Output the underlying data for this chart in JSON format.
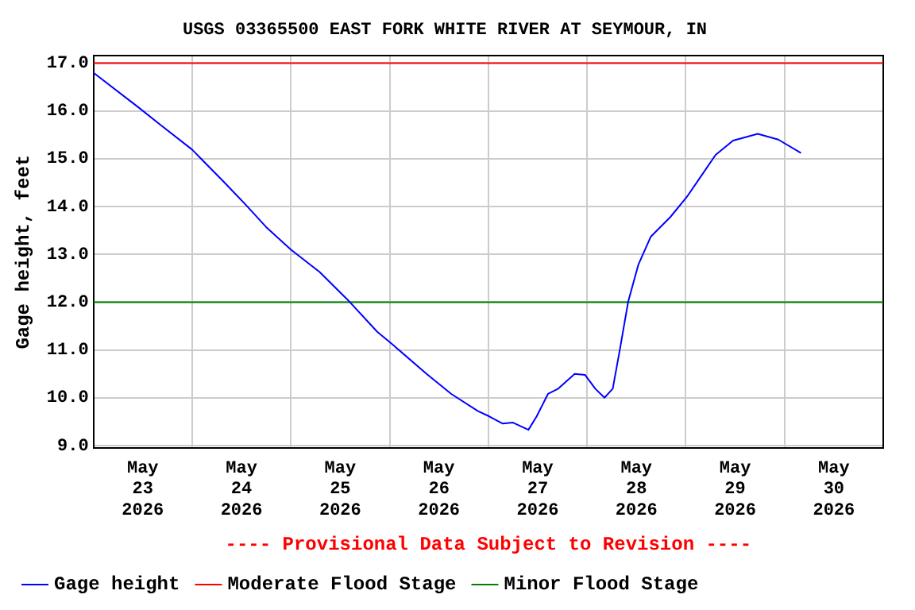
{
  "chart_data": {
    "type": "line",
    "title": "USGS 03365500 EAST FORK WHITE RIVER AT SEYMOUR, IN",
    "ylabel": "Gage height, feet",
    "annotations": [
      "---- Provisional Data Subject to Revision ----"
    ],
    "x": [
      "2026-05-23T00:00",
      "2026-05-23T11:00",
      "2026-05-23T16:15",
      "2026-05-24T00:00",
      "2026-05-24T07:45",
      "2026-05-24T13:00",
      "2026-05-24T18:00",
      "2026-05-25T00:00",
      "2026-05-25T07:00",
      "2026-05-25T14:15",
      "2026-05-25T21:00",
      "2026-05-26T00:30",
      "2026-05-26T09:00",
      "2026-05-26T15:00",
      "2026-05-26T21:30",
      "2026-05-27T00:15",
      "2026-05-27T03:30",
      "2026-05-27T06:00",
      "2026-05-27T09:45",
      "2026-05-27T11:45",
      "2026-05-27T14:30",
      "2026-05-27T17:00",
      "2026-05-27T21:00",
      "2026-05-27T23:30",
      "2026-05-28T02:00",
      "2026-05-28T04:15",
      "2026-05-28T06:15",
      "2026-05-28T08:00",
      "2026-05-28T10:00",
      "2026-05-28T12:30",
      "2026-05-28T15:30",
      "2026-05-28T20:15",
      "2026-05-29T00:15",
      "2026-05-29T04:00",
      "2026-05-29T07:15",
      "2026-05-29T11:30",
      "2026-05-29T17:30",
      "2026-05-29T22:30",
      "2026-05-30T04:00"
    ],
    "series": [
      {
        "name": "Gage height",
        "color": "#0000ff",
        "values": [
          16.8,
          16.07,
          15.71,
          15.19,
          14.51,
          14.04,
          13.57,
          13.1,
          12.63,
          12.01,
          11.38,
          11.13,
          10.5,
          10.08,
          9.72,
          9.61,
          9.46,
          9.48,
          9.33,
          9.61,
          10.08,
          10.19,
          10.5,
          10.48,
          10.19,
          10.0,
          10.19,
          11.02,
          12.01,
          12.79,
          13.37,
          13.78,
          14.2,
          14.67,
          15.08,
          15.38,
          15.52,
          15.4,
          15.12
        ]
      }
    ],
    "ref_lines": [
      {
        "axis": "y",
        "value": 17,
        "label": "Moderate Flood Stage",
        "color": "#ff0000"
      },
      {
        "axis": "y",
        "value": 12,
        "label": "Minor Flood Stage",
        "color": "#008000"
      }
    ],
    "xlim": [
      "2026-05-23T00:00",
      "2026-05-31T00:00"
    ],
    "xticks": [
      {
        "value": "2026-05-23T00:00",
        "label": null
      },
      {
        "value": "2026-05-23T12:00",
        "label": "May 23 2026"
      },
      {
        "value": "2026-05-24T00:00",
        "label": null
      },
      {
        "value": "2026-05-24T12:00",
        "label": "May 24 2026"
      },
      {
        "value": "2026-05-25T00:00",
        "label": null
      },
      {
        "value": "2026-05-25T12:00",
        "label": "May 25 2026"
      },
      {
        "value": "2026-05-26T00:00",
        "label": null
      },
      {
        "value": "2026-05-26T12:00",
        "label": "May 26 2026"
      },
      {
        "value": "2026-05-27T00:00",
        "label": null
      },
      {
        "value": "2026-05-27T12:00",
        "label": "May 27 2026"
      },
      {
        "value": "2026-05-28T00:00",
        "label": null
      },
      {
        "value": "2026-05-28T12:00",
        "label": "May 28 2026"
      },
      {
        "value": "2026-05-29T00:00",
        "label": null
      },
      {
        "value": "2026-05-29T12:00",
        "label": "May 29 2026"
      },
      {
        "value": "2026-05-30T00:00",
        "label": null
      },
      {
        "value": "2026-05-30T12:00",
        "label": "May 30 2026"
      },
      {
        "value": "2026-05-31T00:00",
        "label": null
      }
    ],
    "ylim": [
      8.95,
      17.15
    ],
    "yticks": [
      {
        "value": 9,
        "label": "9.0"
      },
      {
        "value": 10,
        "label": "10.0"
      },
      {
        "value": 11,
        "label": "11.0"
      },
      {
        "value": 12,
        "label": "12.0"
      },
      {
        "value": 13,
        "label": "13.0"
      },
      {
        "value": 14,
        "label": "14.0"
      },
      {
        "value": 15,
        "label": "15.0"
      },
      {
        "value": 16,
        "label": "16.0"
      },
      {
        "value": 17,
        "label": "17.0"
      }
    ],
    "grid": true,
    "legend": "bottom",
    "marker": "none",
    "line_style": "solid"
  }
}
